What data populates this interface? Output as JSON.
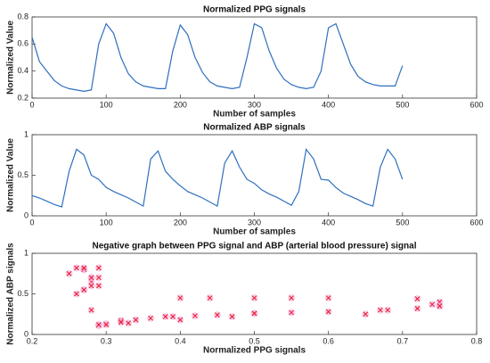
{
  "chart_data": [
    {
      "type": "line",
      "title": "Normalized PPG signals",
      "x_label": "Number of samples",
      "y_label": "Normalized Value",
      "color": "#2e6fbf",
      "x": [
        0,
        10,
        20,
        30,
        40,
        50,
        60,
        70,
        80,
        90,
        100,
        110,
        120,
        130,
        140,
        150,
        160,
        170,
        180,
        190,
        200,
        210,
        220,
        230,
        240,
        250,
        260,
        270,
        280,
        290,
        300,
        310,
        320,
        330,
        340,
        350,
        360,
        370,
        380,
        390,
        400,
        410,
        420,
        430,
        440,
        450,
        460,
        470,
        480,
        490,
        500
      ],
      "values": [
        0.65,
        0.47,
        0.4,
        0.33,
        0.29,
        0.27,
        0.26,
        0.25,
        0.26,
        0.6,
        0.75,
        0.68,
        0.5,
        0.38,
        0.32,
        0.29,
        0.28,
        0.27,
        0.27,
        0.55,
        0.74,
        0.67,
        0.5,
        0.39,
        0.32,
        0.29,
        0.28,
        0.27,
        0.28,
        0.5,
        0.75,
        0.72,
        0.55,
        0.42,
        0.34,
        0.3,
        0.28,
        0.27,
        0.28,
        0.4,
        0.72,
        0.75,
        0.6,
        0.45,
        0.36,
        0.32,
        0.3,
        0.29,
        0.29,
        0.29,
        0.44
      ],
      "xlim": [
        0,
        600
      ],
      "xticks": [
        0,
        100,
        200,
        300,
        400,
        500,
        600
      ],
      "ylim": [
        0.2,
        0.8
      ],
      "yticks": [
        0.2,
        0.4,
        0.6,
        0.8
      ]
    },
    {
      "type": "line",
      "title": "Normalized ABP signals",
      "x_label": "Number of samples",
      "y_label": "Normalized Value",
      "color": "#2e6fbf",
      "x": [
        0,
        10,
        20,
        30,
        40,
        50,
        60,
        70,
        80,
        90,
        100,
        110,
        120,
        130,
        140,
        150,
        160,
        170,
        180,
        190,
        200,
        210,
        220,
        230,
        240,
        250,
        260,
        270,
        280,
        290,
        300,
        310,
        320,
        330,
        340,
        350,
        360,
        370,
        380,
        390,
        400,
        410,
        420,
        430,
        440,
        450,
        460,
        470,
        480,
        490,
        500
      ],
      "values": [
        0.25,
        0.22,
        0.18,
        0.14,
        0.11,
        0.55,
        0.82,
        0.75,
        0.5,
        0.45,
        0.35,
        0.3,
        0.26,
        0.22,
        0.17,
        0.12,
        0.7,
        0.8,
        0.55,
        0.45,
        0.37,
        0.3,
        0.26,
        0.22,
        0.17,
        0.12,
        0.65,
        0.8,
        0.6,
        0.45,
        0.4,
        0.32,
        0.27,
        0.23,
        0.18,
        0.13,
        0.3,
        0.82,
        0.7,
        0.45,
        0.44,
        0.35,
        0.28,
        0.24,
        0.2,
        0.15,
        0.12,
        0.6,
        0.82,
        0.7,
        0.45
      ],
      "xlim": [
        0,
        600
      ],
      "xticks": [
        0,
        100,
        200,
        300,
        400,
        500,
        600
      ],
      "ylim": [
        0,
        1
      ],
      "yticks": [
        0,
        0.5,
        1
      ]
    },
    {
      "type": "scatter",
      "title": "Negative graph between PPG signal and ABP (arterial blood pressure) signal",
      "x_label": "Normalized PPG signals",
      "y_label": "Normalized ABP signals",
      "color": "#e8151a",
      "x": [
        0.65,
        0.47,
        0.4,
        0.33,
        0.29,
        0.27,
        0.26,
        0.25,
        0.26,
        0.6,
        0.75,
        0.68,
        0.5,
        0.38,
        0.32,
        0.29,
        0.28,
        0.27,
        0.27,
        0.55,
        0.74,
        0.67,
        0.5,
        0.39,
        0.32,
        0.29,
        0.28,
        0.27,
        0.28,
        0.5,
        0.75,
        0.72,
        0.55,
        0.42,
        0.34,
        0.3,
        0.28,
        0.27,
        0.28,
        0.4,
        0.72,
        0.75,
        0.6,
        0.45,
        0.36,
        0.32,
        0.3,
        0.29,
        0.29,
        0.29,
        0.44
      ],
      "values": [
        0.25,
        0.22,
        0.18,
        0.14,
        0.11,
        0.55,
        0.82,
        0.75,
        0.5,
        0.45,
        0.35,
        0.3,
        0.26,
        0.22,
        0.17,
        0.12,
        0.7,
        0.8,
        0.55,
        0.45,
        0.37,
        0.3,
        0.26,
        0.22,
        0.17,
        0.12,
        0.65,
        0.8,
        0.6,
        0.45,
        0.4,
        0.32,
        0.27,
        0.23,
        0.18,
        0.13,
        0.3,
        0.82,
        0.7,
        0.45,
        0.44,
        0.35,
        0.28,
        0.24,
        0.2,
        0.15,
        0.12,
        0.6,
        0.82,
        0.7,
        0.45
      ],
      "xlim": [
        0.2,
        0.8
      ],
      "xticks": [
        0.2,
        0.3,
        0.4,
        0.5,
        0.6,
        0.7,
        0.8
      ],
      "ylim": [
        0,
        1
      ],
      "yticks": [
        0,
        0.5,
        1
      ]
    }
  ]
}
